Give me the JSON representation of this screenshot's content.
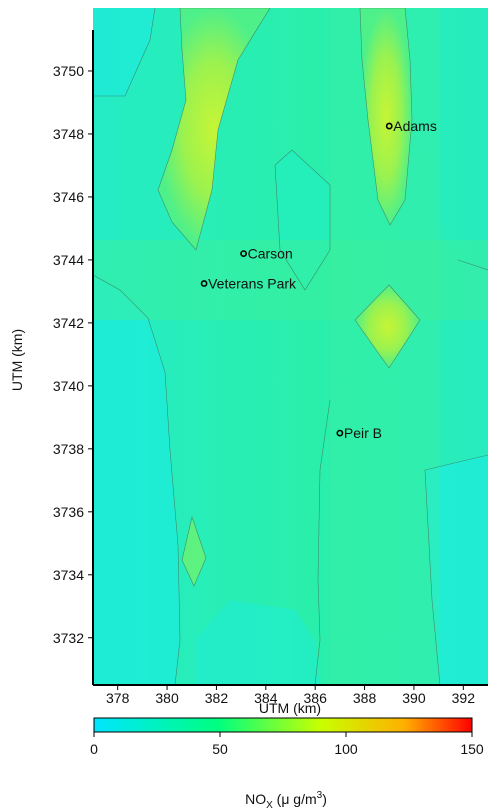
{
  "plot": {
    "x_axis": {
      "label": "UTM (km)",
      "min": 377,
      "max": 393,
      "ticks": [
        "378",
        "380",
        "382",
        "384",
        "386",
        "388",
        "390",
        "392"
      ]
    },
    "y_axis": {
      "label": "UTM (km)",
      "min": 3730.5,
      "max": 3752,
      "ticks": [
        "3732",
        "3734",
        "3736",
        "3738",
        "3740",
        "3742",
        "3744",
        "3746",
        "3748",
        "3750"
      ]
    },
    "field": {
      "background_value": 35,
      "colors": {
        "low": "#1ff0d8",
        "mid": "#22f0a0",
        "high": "#8ef25a",
        "peak": "#c6f536"
      }
    },
    "stations": [
      {
        "name": "Adams",
        "x": 389.0,
        "y": 3748.25
      },
      {
        "name": "Carson",
        "x": 383.1,
        "y": 3744.2
      },
      {
        "name": "Veterans Park",
        "x": 381.5,
        "y": 3743.25
      },
      {
        "name": "Peir B",
        "x": 387.0,
        "y": 3738.5
      }
    ]
  },
  "colorbar": {
    "label_prefix": "NO",
    "label_sub": "X",
    "label_units": " (μ g/m",
    "label_sup": "3",
    "label_close": ")",
    "min": 0,
    "max": 150,
    "ticks": [
      "0",
      "50",
      "100",
      "150"
    ],
    "stops": [
      "#00e5ff",
      "#00ff80",
      "#c8ff00",
      "#ffb000",
      "#ff0000"
    ]
  }
}
